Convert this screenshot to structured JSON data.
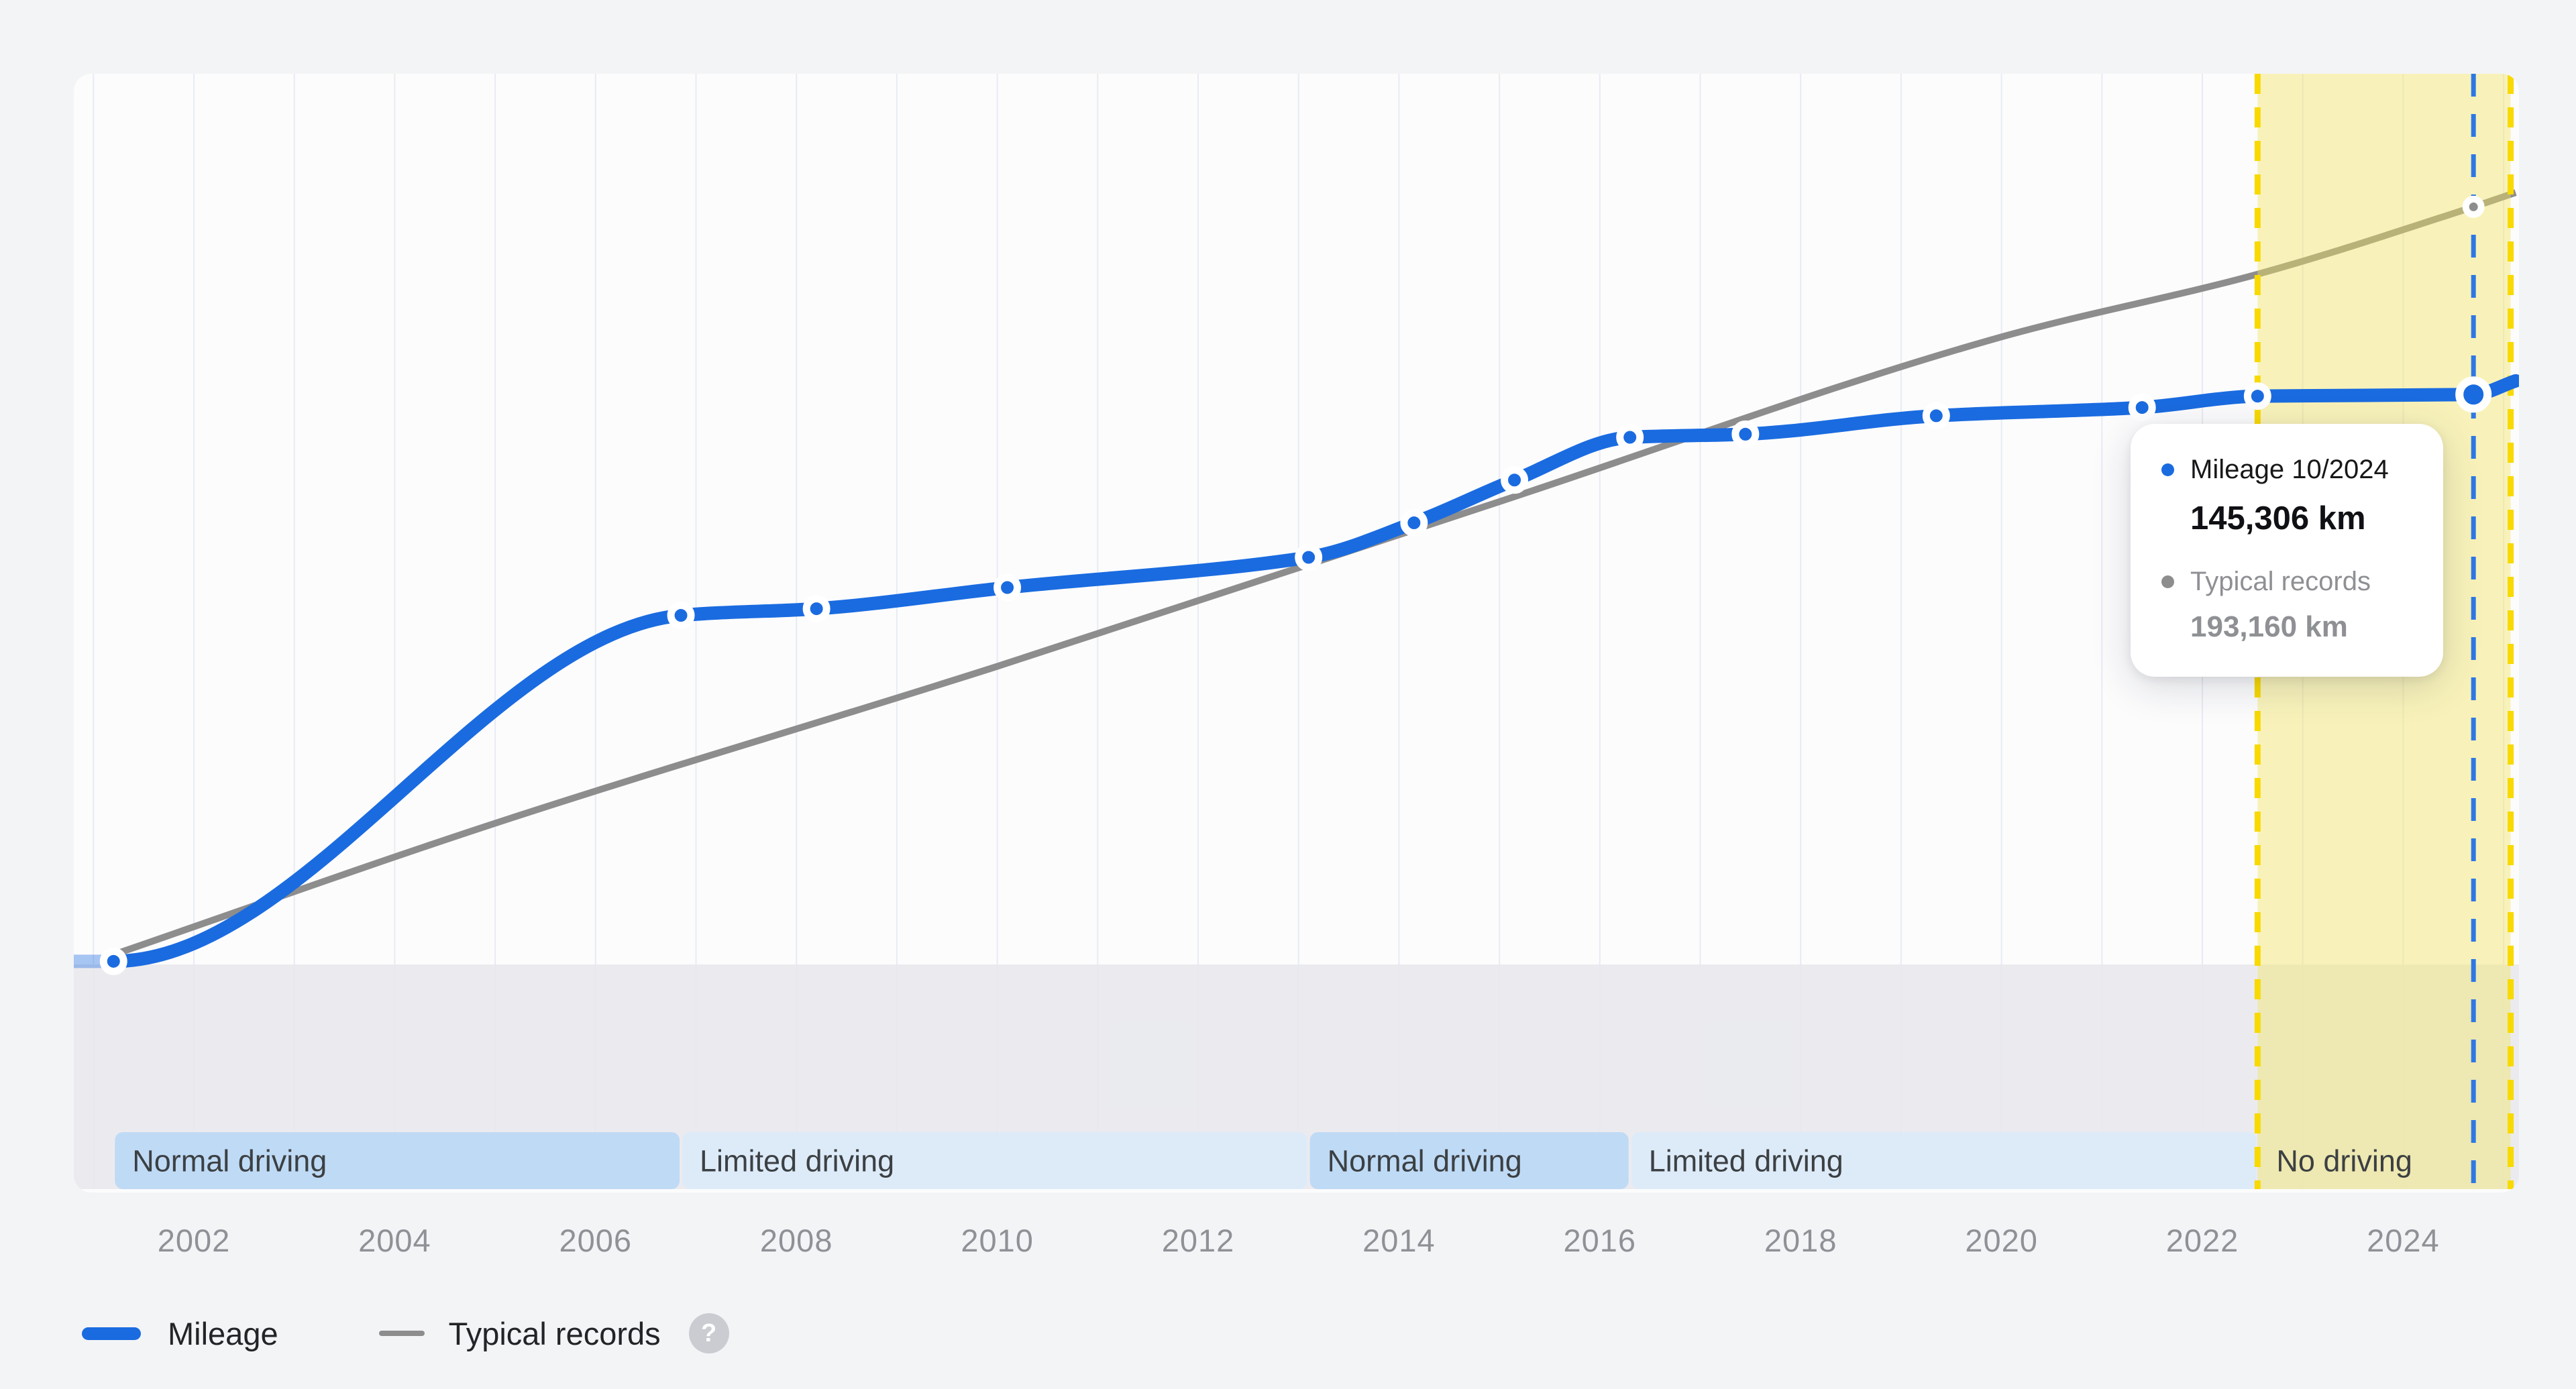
{
  "page": {
    "background_color": "#f3f4f6",
    "plot_background_color": "#fcfcfd"
  },
  "tooltip": {
    "series1_label": "Mileage 10/2024",
    "series1_value": "145,306 km",
    "series2_label": "Typical records",
    "series2_value": "193,160 km"
  },
  "legend": {
    "mileage_label": "Mileage",
    "typical_label": "Typical records",
    "help_icon": "question-mark-icon",
    "help_glyph": "?"
  },
  "colors": {
    "mileage_line": "#1a6be0",
    "mileage_line_faded": "rgba(26,107,224,0.38)",
    "typical_line": "#8d8d8d",
    "grid": "#e7ebf3",
    "zero_region": "rgba(231,232,236,0.85)",
    "no_data_fill": "rgba(243,228,92,0.42)",
    "no_data_border": "#f8d900",
    "current_line": "#2e78e6",
    "band_normal": "#bfdaf5",
    "band_limited": "#ddebf9",
    "band_text": "#3c4043",
    "axis_text": "#8f9196",
    "dot_ring": "#ffffff"
  },
  "chart_data": {
    "type": "line",
    "unit": "km",
    "x_range": [
      2000.8,
      2025.12
    ],
    "y_range": [
      0,
      210000
    ],
    "grid_year_step": 1,
    "x_ticks": [
      2002,
      2004,
      2006,
      2008,
      2010,
      2012,
      2014,
      2016,
      2018,
      2020,
      2022,
      2024
    ],
    "series": [
      {
        "name": "Mileage",
        "color": "#1a6be0",
        "points": [
          [
            2001.2,
            800
          ],
          [
            2006.85,
            89000
          ],
          [
            2008.2,
            90700
          ],
          [
            2010.1,
            96100
          ],
          [
            2013.1,
            103800
          ],
          [
            2014.15,
            112600
          ],
          [
            2015.15,
            123500
          ],
          [
            2016.3,
            134400
          ],
          [
            2017.45,
            135200
          ],
          [
            2019.35,
            139900
          ],
          [
            2021.4,
            142000
          ],
          [
            2022.55,
            144900
          ],
          [
            2024.7,
            145306
          ]
        ],
        "current": {
          "x": 2024.7,
          "km": 145306,
          "date_label": "10/2024"
        },
        "edge_left": [
          2000.8,
          800
        ],
        "edge_right": [
          2025.12,
          148800
        ]
      },
      {
        "name": "Typical records",
        "color": "#8d8d8d",
        "points": [
          [
            2001.2,
            2500
          ],
          [
            2005,
            36000
          ],
          [
            2010,
            76000
          ],
          [
            2015,
            118000
          ],
          [
            2020,
            160000
          ],
          [
            2022.55,
            176000
          ],
          [
            2024.7,
            193160
          ]
        ],
        "end_point": {
          "x": 2024.7,
          "km": 193160
        },
        "edge_right": [
          2025.12,
          196800
        ]
      }
    ],
    "driving_periods": [
      {
        "label": "Normal driving",
        "from": 2001.2,
        "to": 2006.85,
        "kind": "normal"
      },
      {
        "label": "Limited driving",
        "from": 2006.85,
        "to": 2013.1,
        "kind": "limited"
      },
      {
        "label": "Normal driving",
        "from": 2013.1,
        "to": 2016.3,
        "kind": "normal"
      },
      {
        "label": "Limited driving",
        "from": 2016.3,
        "to": 2022.55,
        "kind": "limited"
      },
      {
        "label": "No driving",
        "from": 2022.55,
        "to": 2025.07,
        "kind": "none"
      }
    ],
    "no_data_region": {
      "from": 2022.55,
      "to": 2025.07
    },
    "current_marker": {
      "x": 2024.7
    }
  }
}
